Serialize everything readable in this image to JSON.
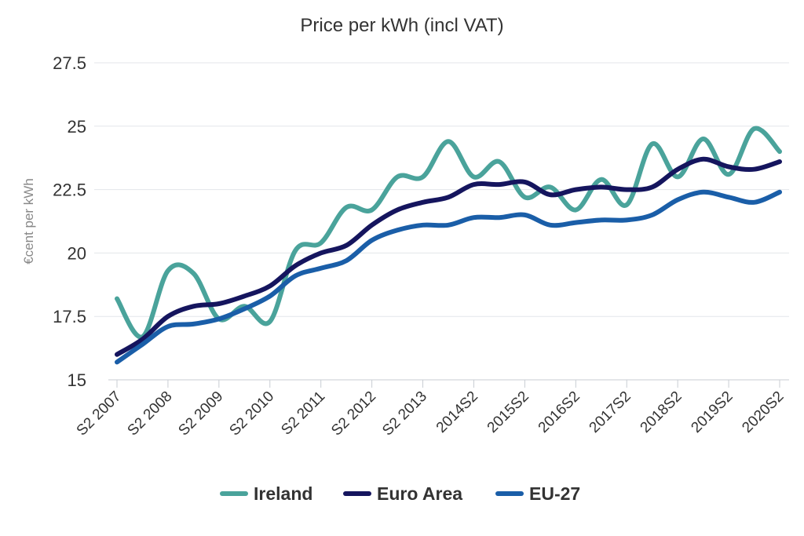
{
  "chart_data": {
    "type": "line",
    "title": "Price per kWh (incl VAT)",
    "xlabel": "",
    "ylabel": "€cent per kWh",
    "ylim": [
      15,
      27.5
    ],
    "yticks": [
      "15",
      "17.5",
      "20",
      "22.5",
      "25",
      "27.5"
    ],
    "grid": true,
    "legend_position": "bottom",
    "x_tick_labels": [
      "S2 2007",
      "S2 2008",
      "S2 2009",
      "S2 2010",
      "S2 2011",
      "S2 2012",
      "S2 2013",
      "2014S2",
      "2015S2",
      "2016S2",
      "2017S2",
      "2018S2",
      "2019S2",
      "2020S2"
    ],
    "series": [
      {
        "name": "Ireland",
        "color": "#4aa39b",
        "values": [
          18.2,
          16.7,
          19.3,
          19.2,
          17.4,
          17.9,
          17.3,
          20.1,
          20.4,
          21.8,
          21.7,
          23.0,
          23.0,
          24.4,
          23.0,
          23.6,
          22.2,
          22.6,
          21.7,
          22.9,
          21.9,
          24.3,
          23.0,
          24.5,
          23.1,
          24.9,
          24.0
        ]
      },
      {
        "name": "Euro Area",
        "color": "#15155e",
        "values": [
          16.0,
          16.6,
          17.5,
          17.9,
          18.0,
          18.3,
          18.7,
          19.5,
          20.0,
          20.3,
          21.1,
          21.7,
          22.0,
          22.2,
          22.7,
          22.7,
          22.8,
          22.3,
          22.5,
          22.6,
          22.5,
          22.6,
          23.3,
          23.7,
          23.4,
          23.3,
          23.6
        ]
      },
      {
        "name": "EU-27",
        "color": "#1a5ea8",
        "values": [
          15.7,
          16.4,
          17.1,
          17.2,
          17.4,
          17.8,
          18.3,
          19.1,
          19.4,
          19.7,
          20.5,
          20.9,
          21.1,
          21.1,
          21.4,
          21.4,
          21.5,
          21.1,
          21.2,
          21.3,
          21.3,
          21.5,
          22.1,
          22.4,
          22.2,
          22.0,
          22.4
        ]
      }
    ]
  }
}
